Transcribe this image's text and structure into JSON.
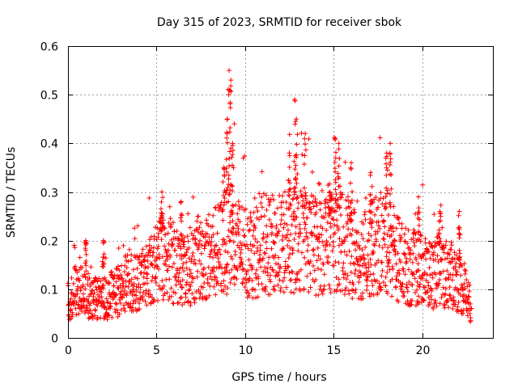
{
  "chart_data": {
    "type": "scatter",
    "title": "Day 315 of 2023, SRMTID for receiver sbok",
    "xlabel": "GPS time / hours",
    "ylabel": "SRMTID / TECUs",
    "xlim": [
      0,
      24
    ],
    "ylim": [
      0,
      0.6
    ],
    "xticks": [
      0,
      5,
      10,
      15,
      20
    ],
    "xtick_labels": [
      "0",
      "5",
      "10",
      "15",
      "20"
    ],
    "yticks": [
      0,
      0.1,
      0.2,
      0.3,
      0.4,
      0.5,
      0.6
    ],
    "ytick_labels": [
      "0",
      "0.1",
      "0.2",
      "0.3",
      "0.4",
      "0.5",
      "0.6"
    ],
    "grid": true,
    "marker": "+",
    "color": "#ff0000",
    "series": [
      {
        "name": "SRMTID",
        "points_note": "dense scatter of ~2000 samples; representative envelope values below (hour, TECU)",
        "envelope": [
          [
            0.0,
            0.08
          ],
          [
            0.5,
            0.1
          ],
          [
            1.0,
            0.09
          ],
          [
            1.5,
            0.08
          ],
          [
            2.0,
            0.08
          ],
          [
            2.5,
            0.09
          ],
          [
            3.0,
            0.1
          ],
          [
            3.5,
            0.12
          ],
          [
            4.0,
            0.11
          ],
          [
            4.5,
            0.13
          ],
          [
            5.0,
            0.16
          ],
          [
            5.5,
            0.17
          ],
          [
            6.0,
            0.15
          ],
          [
            6.5,
            0.14
          ],
          [
            7.0,
            0.15
          ],
          [
            7.5,
            0.16
          ],
          [
            8.0,
            0.17
          ],
          [
            8.5,
            0.18
          ],
          [
            9.0,
            0.2
          ],
          [
            9.5,
            0.19
          ],
          [
            10.0,
            0.18
          ],
          [
            10.5,
            0.18
          ],
          [
            11.0,
            0.19
          ],
          [
            11.5,
            0.19
          ],
          [
            12.0,
            0.19
          ],
          [
            12.5,
            0.2
          ],
          [
            13.0,
            0.2
          ],
          [
            13.5,
            0.2
          ],
          [
            14.0,
            0.19
          ],
          [
            14.5,
            0.2
          ],
          [
            15.0,
            0.21
          ],
          [
            15.5,
            0.2
          ],
          [
            16.0,
            0.18
          ],
          [
            16.5,
            0.17
          ],
          [
            17.0,
            0.18
          ],
          [
            17.5,
            0.19
          ],
          [
            18.0,
            0.2
          ],
          [
            18.5,
            0.17
          ],
          [
            19.0,
            0.15
          ],
          [
            19.5,
            0.14
          ],
          [
            20.0,
            0.14
          ],
          [
            20.5,
            0.13
          ],
          [
            21.0,
            0.14
          ],
          [
            21.5,
            0.13
          ],
          [
            22.0,
            0.12
          ],
          [
            22.5,
            0.09
          ],
          [
            22.8,
            0.06
          ]
        ],
        "spikes": [
          [
            9.1,
            0.55
          ],
          [
            9.2,
            0.53
          ],
          [
            9.0,
            0.45
          ],
          [
            9.3,
            0.4
          ],
          [
            8.8,
            0.35
          ],
          [
            12.8,
            0.49
          ],
          [
            12.9,
            0.45
          ],
          [
            13.4,
            0.42
          ],
          [
            12.5,
            0.38
          ],
          [
            15.1,
            0.41
          ],
          [
            15.3,
            0.4
          ],
          [
            16.0,
            0.36
          ],
          [
            18.2,
            0.4
          ],
          [
            18.0,
            0.38
          ],
          [
            19.8,
            0.29
          ],
          [
            21.0,
            0.26
          ],
          [
            22.1,
            0.26
          ],
          [
            5.3,
            0.3
          ],
          [
            6.4,
            0.28
          ],
          [
            1.0,
            0.2
          ],
          [
            2.0,
            0.2
          ],
          [
            14.8,
            0.3
          ],
          [
            17.1,
            0.34
          ]
        ]
      }
    ]
  }
}
